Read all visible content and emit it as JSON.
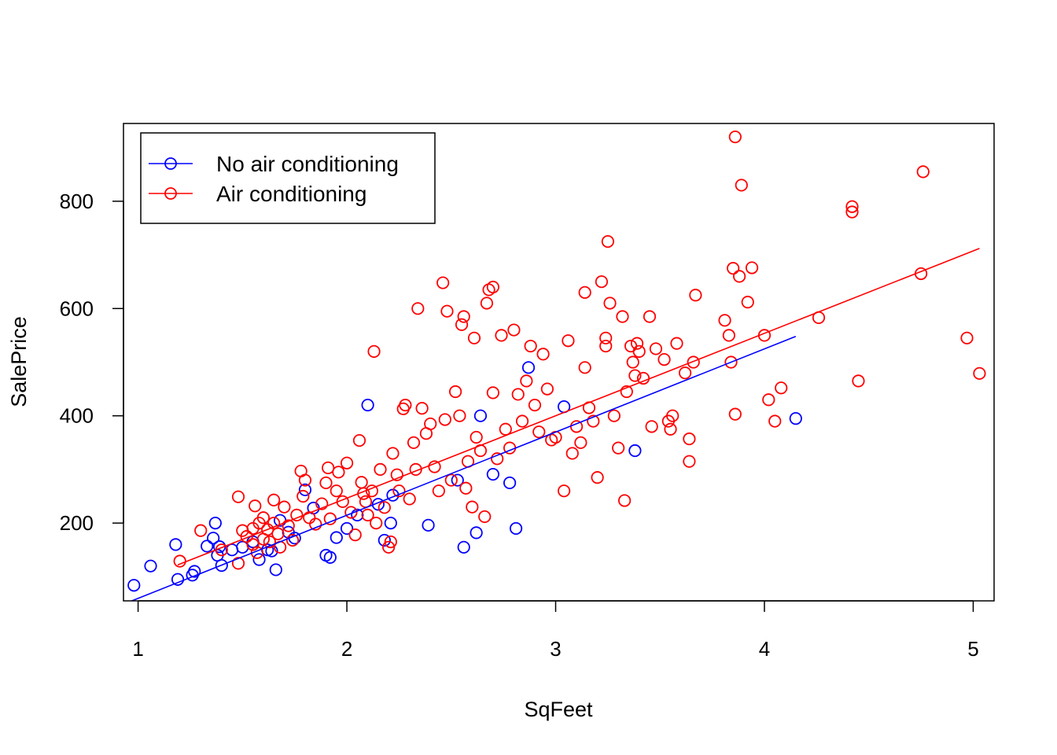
{
  "chart_data": {
    "type": "scatter",
    "title": "",
    "xlabel": "SqFeet",
    "ylabel": "SalePrice",
    "xlim": [
      0.93,
      5.1
    ],
    "ylim": [
      55,
      945
    ],
    "x_ticks": [
      1,
      2,
      3,
      4,
      5
    ],
    "y_ticks": [
      200,
      400,
      600,
      800
    ],
    "grid": false,
    "legend": {
      "position": "top-left",
      "marker": "open-circle-with-line"
    },
    "series": [
      {
        "name": "No air conditioning",
        "color": "#0000ff",
        "fit_line": {
          "x": [
            0.97,
            4.15
          ],
          "y": [
            55,
            548
          ]
        },
        "points": [
          [
            0.98,
            84
          ],
          [
            1.06,
            120
          ],
          [
            1.18,
            160
          ],
          [
            1.19,
            95
          ],
          [
            1.26,
            103
          ],
          [
            1.27,
            110
          ],
          [
            1.33,
            157
          ],
          [
            1.36,
            172
          ],
          [
            1.37,
            200
          ],
          [
            1.38,
            140
          ],
          [
            1.39,
            156
          ],
          [
            1.4,
            121
          ],
          [
            1.45,
            150
          ],
          [
            1.5,
            155
          ],
          [
            1.55,
            165
          ],
          [
            1.58,
            132
          ],
          [
            1.62,
            150
          ],
          [
            1.64,
            148
          ],
          [
            1.66,
            113
          ],
          [
            1.68,
            205
          ],
          [
            1.72,
            183
          ],
          [
            1.75,
            172
          ],
          [
            1.8,
            262
          ],
          [
            1.84,
            228
          ],
          [
            1.9,
            140
          ],
          [
            1.92,
            136
          ],
          [
            1.95,
            173
          ],
          [
            2.0,
            190
          ],
          [
            2.05,
            215
          ],
          [
            2.1,
            420
          ],
          [
            2.15,
            235
          ],
          [
            2.18,
            168
          ],
          [
            2.21,
            200
          ],
          [
            2.22,
            252
          ],
          [
            2.39,
            196
          ],
          [
            2.53,
            280
          ],
          [
            2.56,
            155
          ],
          [
            2.62,
            182
          ],
          [
            2.64,
            400
          ],
          [
            2.7,
            291
          ],
          [
            2.78,
            275
          ],
          [
            2.81,
            190
          ],
          [
            2.87,
            490
          ],
          [
            3.04,
            417
          ],
          [
            3.38,
            335
          ],
          [
            4.15,
            395
          ]
        ]
      },
      {
        "name": "Air conditioning",
        "color": "#ff0000",
        "fit_line": {
          "x": [
            1.19,
            5.03
          ],
          "y": [
            122,
            712
          ]
        },
        "points": [
          [
            1.2,
            129
          ],
          [
            1.3,
            186
          ],
          [
            1.4,
            150
          ],
          [
            1.48,
            125
          ],
          [
            1.48,
            249
          ],
          [
            1.5,
            186
          ],
          [
            1.52,
            175
          ],
          [
            1.55,
            160
          ],
          [
            1.55,
            190
          ],
          [
            1.56,
            232
          ],
          [
            1.57,
            145
          ],
          [
            1.58,
            200
          ],
          [
            1.6,
            170
          ],
          [
            1.6,
            210
          ],
          [
            1.62,
            188
          ],
          [
            1.63,
            165
          ],
          [
            1.65,
            243
          ],
          [
            1.65,
            200
          ],
          [
            1.67,
            180
          ],
          [
            1.68,
            155
          ],
          [
            1.7,
            230
          ],
          [
            1.72,
            195
          ],
          [
            1.74,
            168
          ],
          [
            1.76,
            215
          ],
          [
            1.78,
            297
          ],
          [
            1.79,
            250
          ],
          [
            1.8,
            280
          ],
          [
            1.82,
            210
          ],
          [
            1.85,
            198
          ],
          [
            1.88,
            236
          ],
          [
            1.9,
            275
          ],
          [
            1.91,
            303
          ],
          [
            1.92,
            208
          ],
          [
            1.95,
            260
          ],
          [
            1.96,
            295
          ],
          [
            1.98,
            240
          ],
          [
            2.0,
            312
          ],
          [
            2.02,
            220
          ],
          [
            2.04,
            178
          ],
          [
            2.06,
            354
          ],
          [
            2.07,
            276
          ],
          [
            2.08,
            255
          ],
          [
            2.09,
            240
          ],
          [
            2.1,
            215
          ],
          [
            2.12,
            260
          ],
          [
            2.13,
            520
          ],
          [
            2.14,
            200
          ],
          [
            2.16,
            300
          ],
          [
            2.18,
            229
          ],
          [
            2.2,
            155
          ],
          [
            2.21,
            165
          ],
          [
            2.22,
            330
          ],
          [
            2.24,
            290
          ],
          [
            2.25,
            260
          ],
          [
            2.27,
            413
          ],
          [
            2.28,
            420
          ],
          [
            2.3,
            245
          ],
          [
            2.32,
            350
          ],
          [
            2.33,
            300
          ],
          [
            2.34,
            600
          ],
          [
            2.36,
            414
          ],
          [
            2.38,
            367
          ],
          [
            2.4,
            385
          ],
          [
            2.42,
            305
          ],
          [
            2.44,
            260
          ],
          [
            2.46,
            648
          ],
          [
            2.47,
            393
          ],
          [
            2.48,
            595
          ],
          [
            2.5,
            280
          ],
          [
            2.52,
            445
          ],
          [
            2.54,
            400
          ],
          [
            2.55,
            570
          ],
          [
            2.56,
            585
          ],
          [
            2.57,
            265
          ],
          [
            2.58,
            315
          ],
          [
            2.6,
            230
          ],
          [
            2.61,
            545
          ],
          [
            2.62,
            360
          ],
          [
            2.64,
            335
          ],
          [
            2.66,
            212
          ],
          [
            2.67,
            610
          ],
          [
            2.68,
            635
          ],
          [
            2.7,
            640
          ],
          [
            2.7,
            443
          ],
          [
            2.72,
            320
          ],
          [
            2.74,
            550
          ],
          [
            2.76,
            375
          ],
          [
            2.78,
            340
          ],
          [
            2.8,
            560
          ],
          [
            2.82,
            440
          ],
          [
            2.84,
            390
          ],
          [
            2.86,
            465
          ],
          [
            2.88,
            530
          ],
          [
            2.9,
            420
          ],
          [
            2.92,
            370
          ],
          [
            2.94,
            515
          ],
          [
            2.96,
            450
          ],
          [
            2.98,
            355
          ],
          [
            3.0,
            360
          ],
          [
            3.04,
            260
          ],
          [
            3.06,
            540
          ],
          [
            3.08,
            330
          ],
          [
            3.1,
            380
          ],
          [
            3.12,
            350
          ],
          [
            3.14,
            490
          ],
          [
            3.14,
            630
          ],
          [
            3.16,
            415
          ],
          [
            3.18,
            390
          ],
          [
            3.2,
            285
          ],
          [
            3.22,
            650
          ],
          [
            3.24,
            530
          ],
          [
            3.24,
            545
          ],
          [
            3.25,
            725
          ],
          [
            3.26,
            610
          ],
          [
            3.28,
            400
          ],
          [
            3.3,
            340
          ],
          [
            3.32,
            585
          ],
          [
            3.33,
            242
          ],
          [
            3.34,
            445
          ],
          [
            3.36,
            530
          ],
          [
            3.37,
            500
          ],
          [
            3.38,
            475
          ],
          [
            3.39,
            535
          ],
          [
            3.4,
            520
          ],
          [
            3.42,
            470
          ],
          [
            3.45,
            585
          ],
          [
            3.46,
            380
          ],
          [
            3.48,
            525
          ],
          [
            3.52,
            505
          ],
          [
            3.54,
            390
          ],
          [
            3.55,
            375
          ],
          [
            3.56,
            400
          ],
          [
            3.58,
            535
          ],
          [
            3.62,
            480
          ],
          [
            3.64,
            357
          ],
          [
            3.64,
            315
          ],
          [
            3.66,
            500
          ],
          [
            3.67,
            625
          ],
          [
            3.81,
            578
          ],
          [
            3.83,
            550
          ],
          [
            3.84,
            500
          ],
          [
            3.85,
            675
          ],
          [
            3.86,
            403
          ],
          [
            3.86,
            920
          ],
          [
            3.88,
            660
          ],
          [
            3.89,
            830
          ],
          [
            3.92,
            612
          ],
          [
            3.94,
            676
          ],
          [
            4.0,
            550
          ],
          [
            4.02,
            430
          ],
          [
            4.05,
            390
          ],
          [
            4.08,
            452
          ],
          [
            4.26,
            583
          ],
          [
            4.42,
            790
          ],
          [
            4.42,
            780
          ],
          [
            4.45,
            465
          ],
          [
            4.75,
            665
          ],
          [
            4.76,
            855
          ],
          [
            4.97,
            545
          ],
          [
            5.03,
            479
          ]
        ]
      }
    ]
  }
}
